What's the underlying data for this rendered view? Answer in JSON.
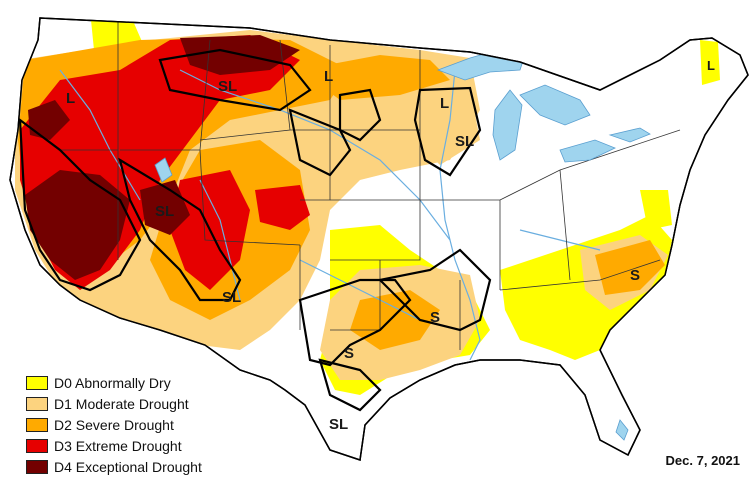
{
  "legend": [
    {
      "label": "D0 Abnormally Dry",
      "color": "#ffff00"
    },
    {
      "label": "D1 Moderate Drought",
      "color": "#fcd37f"
    },
    {
      "label": "D2 Severe Drought",
      "color": "#ffaa00"
    },
    {
      "label": "D3 Extreme Drought",
      "color": "#e60000"
    },
    {
      "label": "D4 Exceptional Drought",
      "color": "#730000"
    }
  ],
  "date": "Dec. 7, 2021",
  "impact_labels": {
    "oregon": "L",
    "montana": "SL",
    "dakota": "L",
    "wisconsin": "L",
    "upper_midwest": "SL",
    "great_basin": "SL",
    "southwest": "SL",
    "arkansas": "S",
    "texas_central": "S",
    "texas_south": "SL",
    "carolina": "S",
    "maine": "L"
  },
  "colors": {
    "land": "#ffffff",
    "water": "#9fd4ee",
    "borders": "#333333",
    "rivers": "#6aaee0",
    "outline": "#000000"
  }
}
